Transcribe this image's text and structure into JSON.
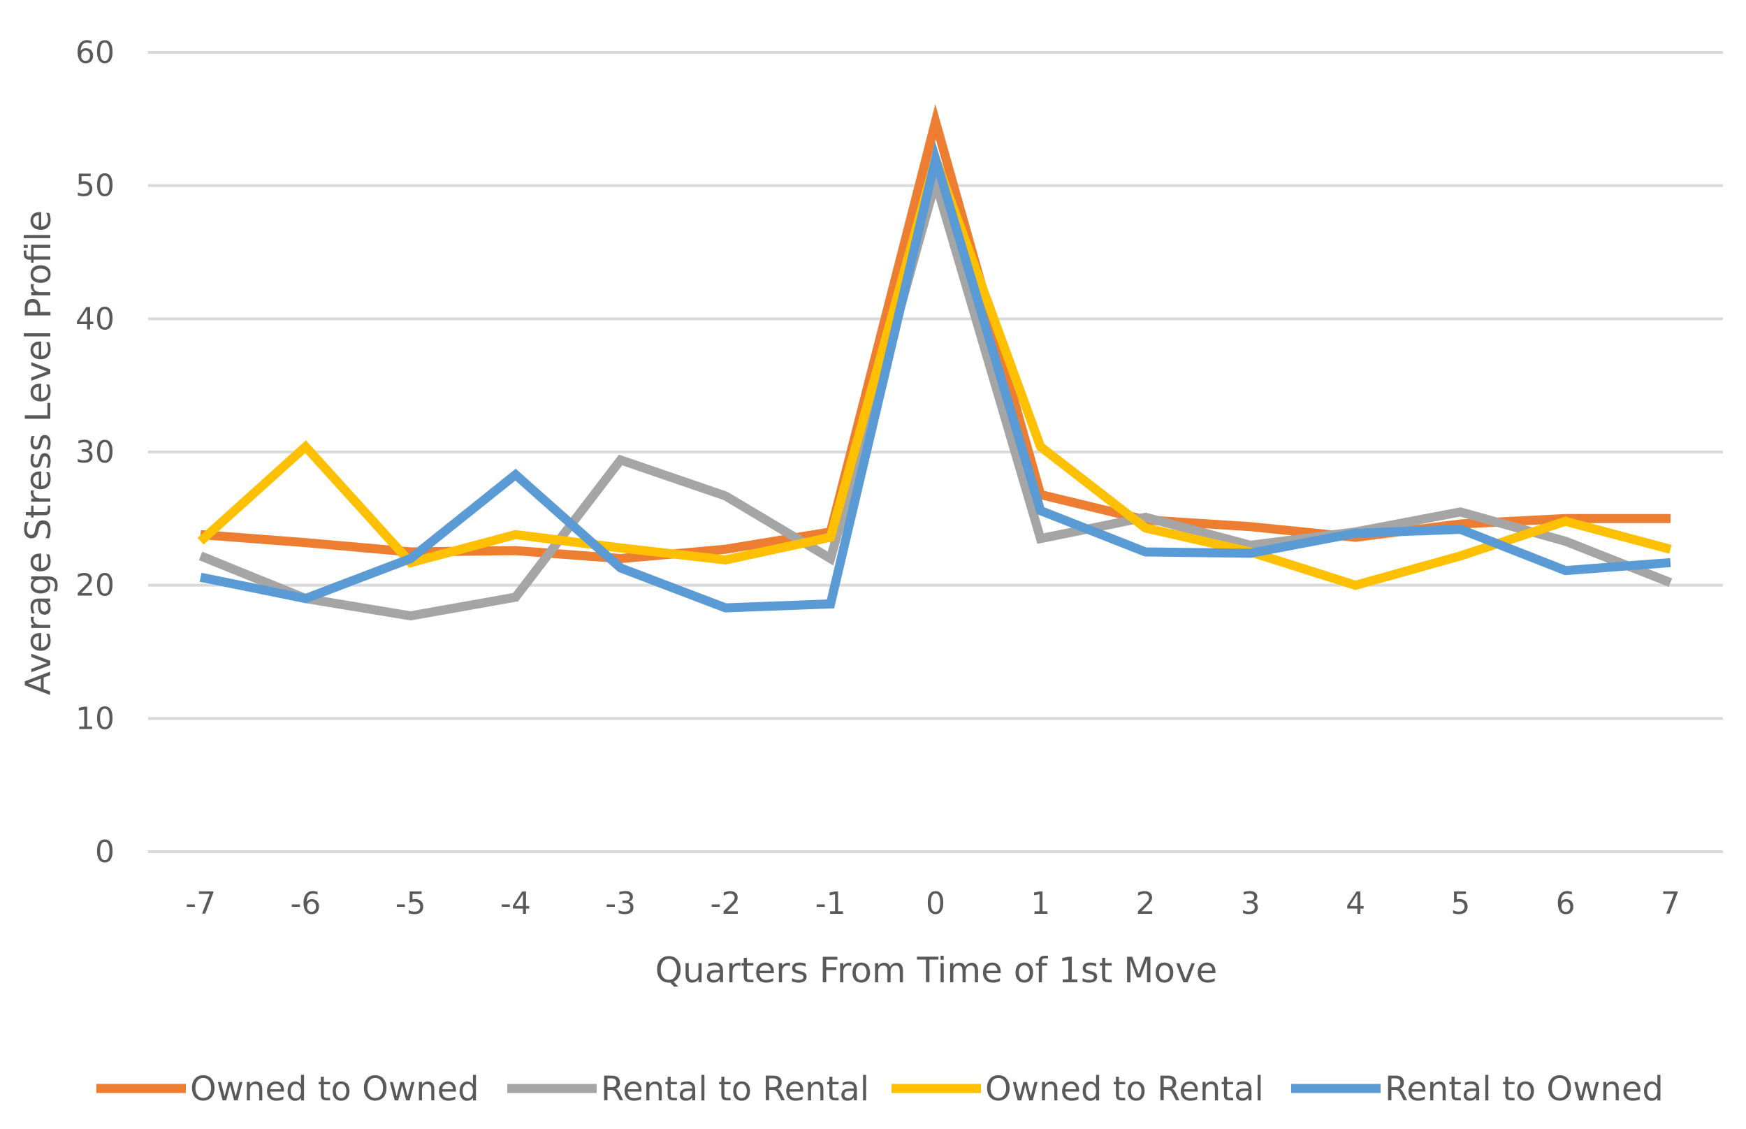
{
  "chart_data": {
    "type": "line",
    "title": "",
    "xlabel": "Quarters From Time of 1st Move",
    "ylabel": "Average Stress Level Profile",
    "ylim": [
      0,
      60
    ],
    "yticks": [
      0,
      10,
      20,
      30,
      40,
      50,
      60
    ],
    "categories": [
      "-7",
      "-6",
      "-5",
      "-4",
      "-3",
      "-2",
      "-1",
      "0",
      "1",
      "2",
      "3",
      "4",
      "5",
      "6",
      "7"
    ],
    "grid": true,
    "legend_position": "bottom",
    "series": [
      {
        "name": "Owned to Owned",
        "color": "#ED7D31",
        "values": [
          23.8,
          23.2,
          22.5,
          22.6,
          22.0,
          22.7,
          24.0,
          54.8,
          26.8,
          24.9,
          24.4,
          23.6,
          24.6,
          25.0,
          25.0
        ]
      },
      {
        "name": "Rental to Rental",
        "color": "#A5A5A5",
        "values": [
          22.2,
          19.0,
          17.7,
          19.1,
          29.4,
          26.7,
          22.0,
          50.3,
          23.5,
          25.1,
          23.0,
          24.0,
          25.5,
          23.3,
          20.2
        ]
      },
      {
        "name": "Owned to Rental",
        "color": "#FFC000",
        "values": [
          23.3,
          30.4,
          21.7,
          23.8,
          22.8,
          21.9,
          23.6,
          52.0,
          30.4,
          24.3,
          22.5,
          20.0,
          22.2,
          24.8,
          22.7
        ]
      },
      {
        "name": "Rental to Owned",
        "color": "#5B9BD5",
        "values": [
          20.6,
          19.0,
          22.0,
          28.3,
          21.3,
          18.3,
          18.6,
          52.0,
          25.6,
          22.5,
          22.4,
          23.9,
          24.2,
          21.1,
          21.7
        ]
      }
    ]
  }
}
